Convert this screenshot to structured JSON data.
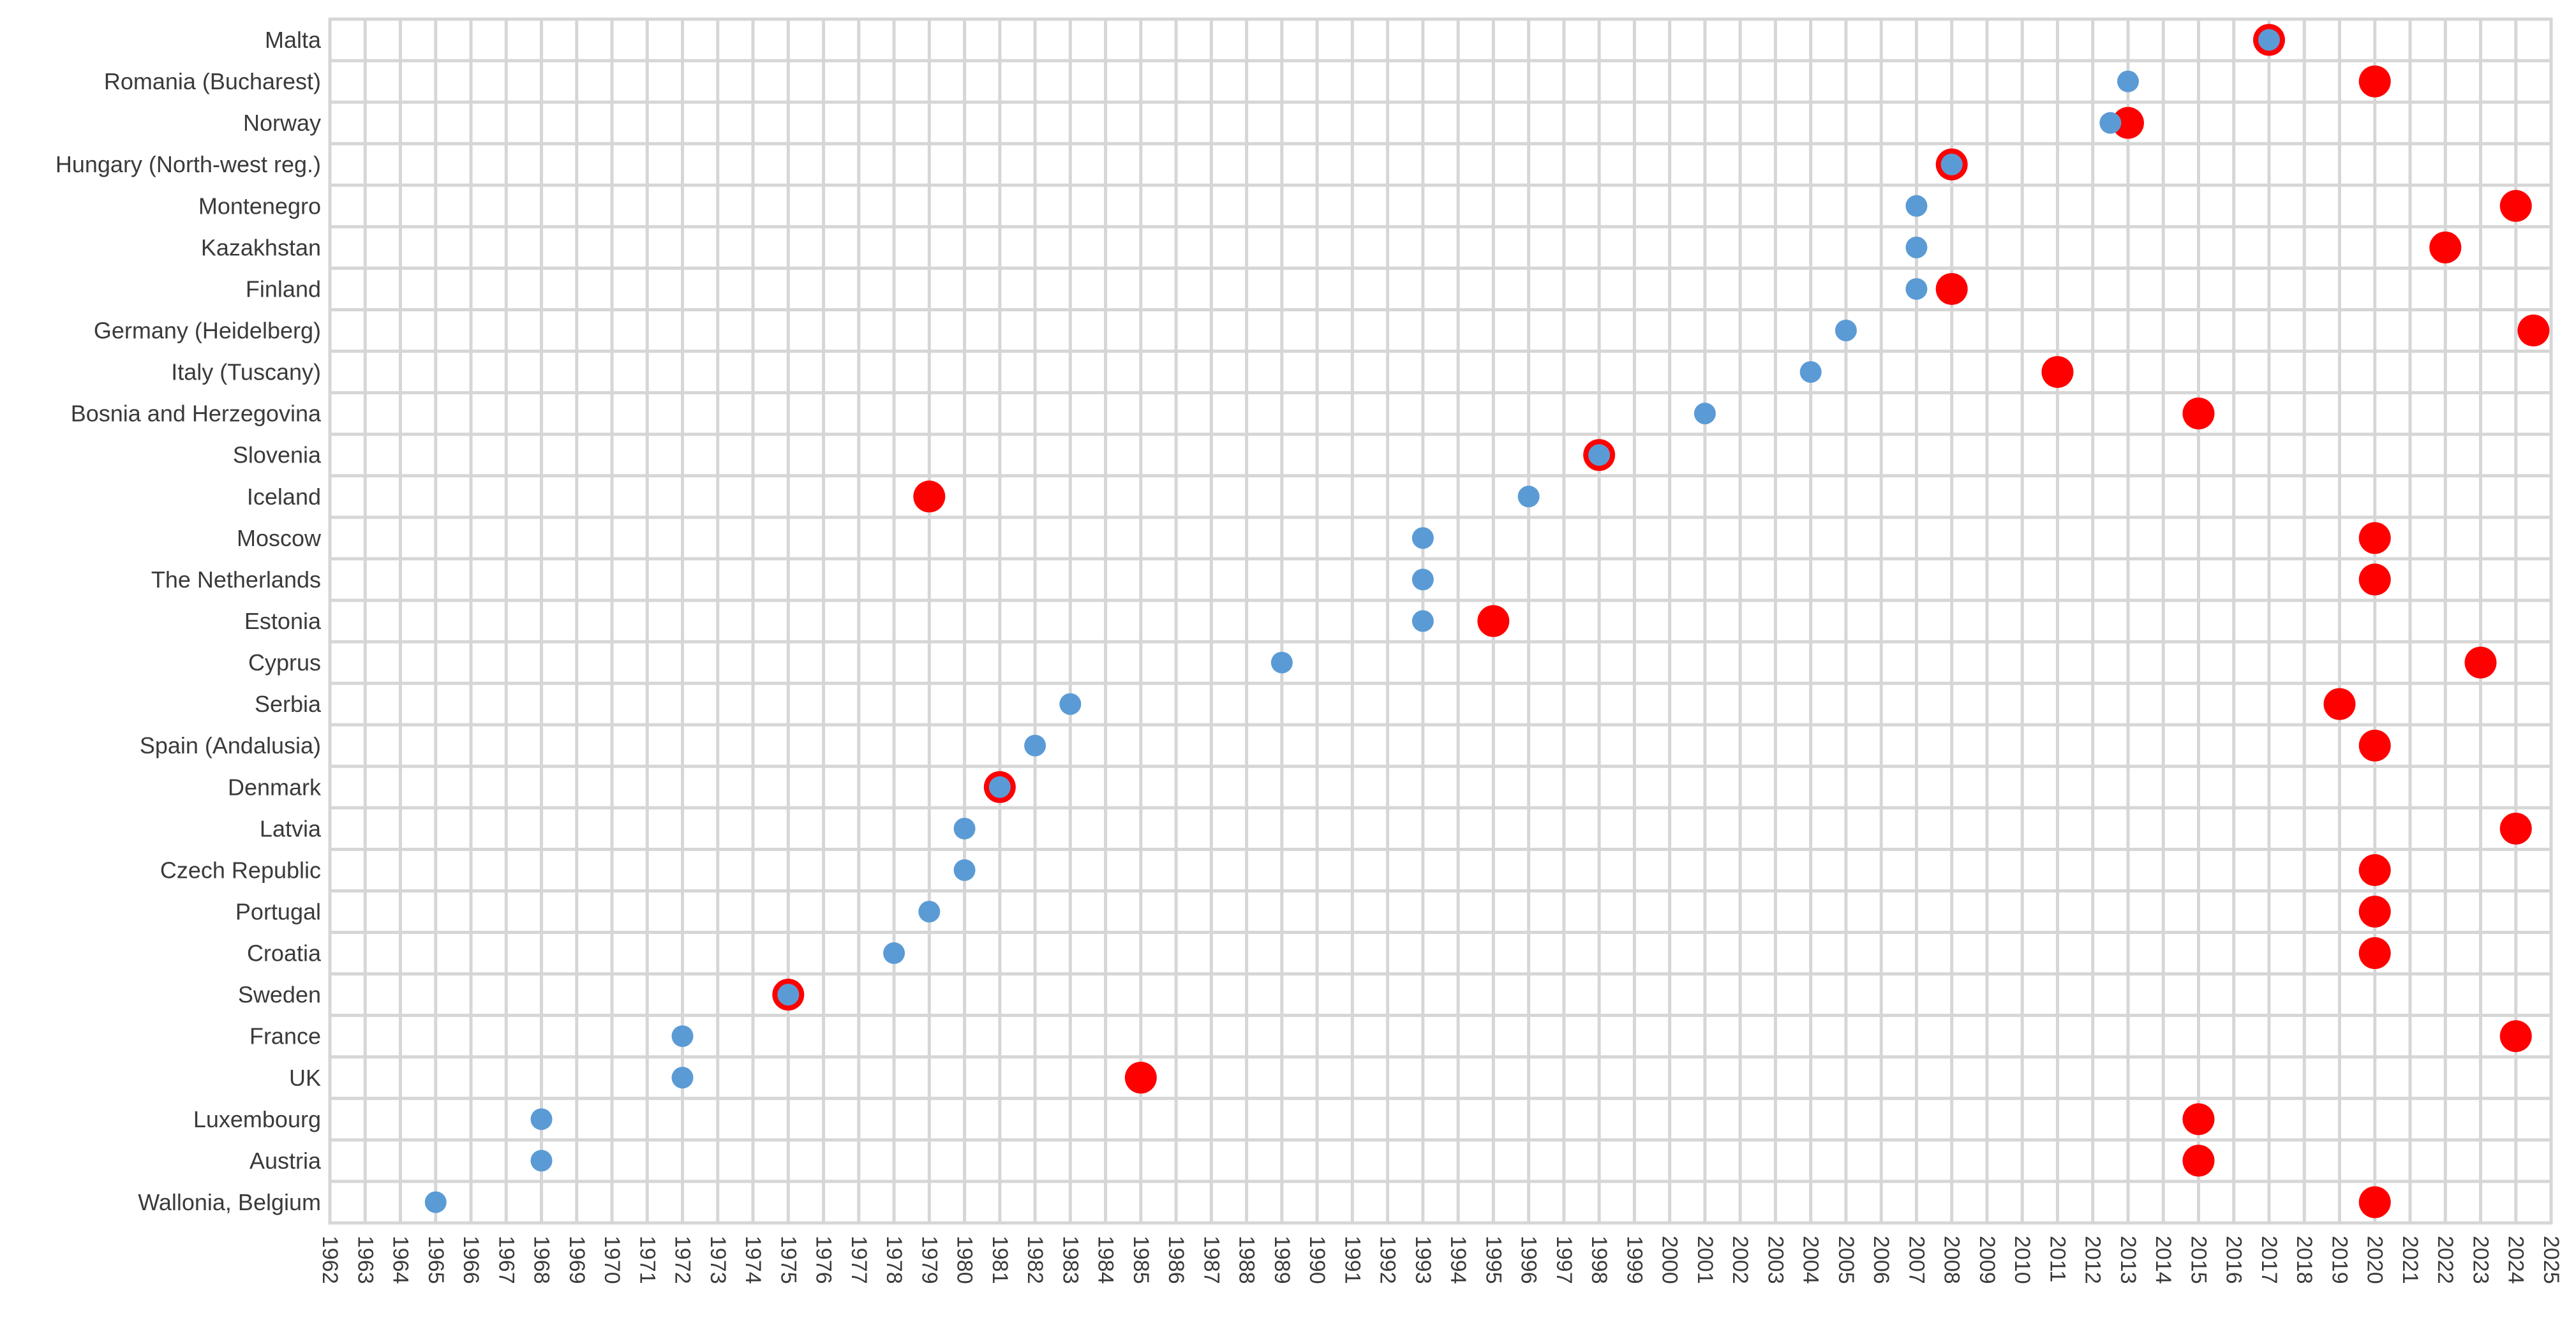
{
  "chart_data": {
    "type": "scatter",
    "title": "",
    "xlabel": "",
    "ylabel": "",
    "xlim": [
      1962,
      2025
    ],
    "x_ticks": [
      1962,
      1963,
      1964,
      1965,
      1966,
      1967,
      1968,
      1969,
      1970,
      1971,
      1972,
      1973,
      1974,
      1975,
      1976,
      1977,
      1978,
      1979,
      1980,
      1981,
      1982,
      1983,
      1984,
      1985,
      1986,
      1987,
      1988,
      1989,
      1990,
      1991,
      1992,
      1993,
      1994,
      1995,
      1996,
      1997,
      1998,
      1999,
      2000,
      2001,
      2002,
      2003,
      2004,
      2005,
      2006,
      2007,
      2008,
      2009,
      2010,
      2011,
      2012,
      2013,
      2014,
      2015,
      2016,
      2017,
      2018,
      2019,
      2020,
      2021,
      2022,
      2023,
      2024,
      2025
    ],
    "grid": "on",
    "legend": "none",
    "categories": [
      "Malta",
      "Romania (Bucharest)",
      "Norway",
      "Hungary (North-west reg.)",
      "Montenegro",
      "Kazakhstan",
      "Finland",
      "Germany (Heidelberg)",
      "Italy (Tuscany)",
      "Bosnia and Herzegovina",
      "Slovenia",
      "Iceland",
      "Moscow",
      "The Netherlands",
      "Estonia",
      "Cyprus",
      "Serbia",
      "Spain (Andalusia)",
      "Denmark",
      "Latvia",
      "Czech Republic",
      "Portugal",
      "Croatia",
      "Sweden",
      "France",
      "UK",
      "Luxembourg",
      "Austria",
      "Wallonia, Belgium"
    ],
    "series": [
      {
        "color": "#5b9bd5",
        "marker": "small-circle",
        "values": [
          2017,
          2013,
          2012.5,
          2008,
          2007,
          2007,
          2007,
          2005,
          2004,
          2001,
          1998,
          1996,
          1993,
          1993,
          1993,
          1989,
          1983,
          1982,
          1981,
          1980,
          1980,
          1979,
          1978,
          1975,
          1972,
          1972,
          1968,
          1968,
          1965
        ]
      },
      {
        "color": "#ff0000",
        "marker": "large-circle",
        "values": [
          2017,
          2020,
          2013,
          2008,
          2024,
          2022,
          2008,
          2024.5,
          2011,
          2015,
          1998,
          1979,
          2020,
          2020,
          1995,
          2023,
          2019,
          2020,
          1981,
          2024,
          2020,
          2020,
          2020,
          1975,
          2024,
          1985,
          2015,
          2015,
          2020
        ]
      }
    ]
  }
}
